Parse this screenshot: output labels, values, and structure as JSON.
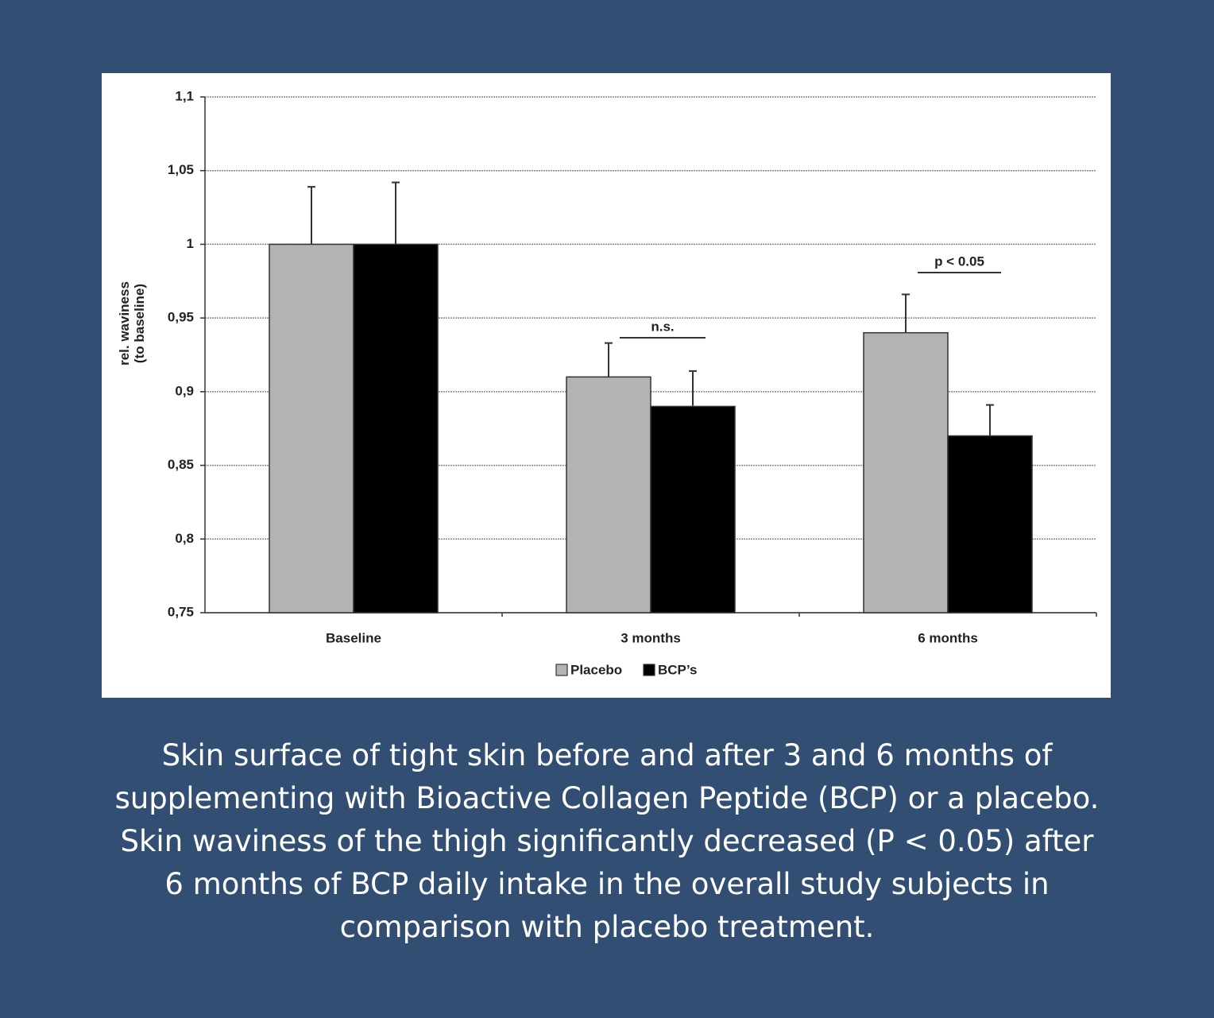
{
  "chart_data": {
    "type": "bar",
    "ylabel": [
      "rel. waviness",
      "(to baseline)"
    ],
    "categories": [
      "Baseline",
      "3 months",
      "6 months"
    ],
    "series": [
      {
        "name": "Placebo",
        "color": "#b3b3b3",
        "values": [
          1,
          0.91,
          0.94
        ],
        "errors": [
          0.039,
          0.023,
          0.026
        ]
      },
      {
        "name": "BCP’s",
        "color": "#000000",
        "values": [
          1,
          0.89,
          0.87
        ],
        "errors": [
          0.042,
          0.024,
          0.021
        ]
      }
    ],
    "ylim": [
      0.75,
      1.1
    ],
    "yticks": [
      {
        "value": 0.75,
        "label": "0,75"
      },
      {
        "value": 0.8,
        "label": "0,8"
      },
      {
        "value": 0.85,
        "label": "0,85"
      },
      {
        "value": 0.9,
        "label": "0,9"
      },
      {
        "value": 0.95,
        "label": "0,95"
      },
      1,
      {
        "value": 1.05,
        "label": "1,05"
      },
      {
        "value": 1.1,
        "label": "1,1"
      }
    ],
    "grid": true,
    "legend": "bottom",
    "annotations": [
      "n.s.",
      "p < 0.05"
    ]
  },
  "caption": "Skin surface of tight skin before and after 3 and 6 months of supplementing with Bioactive Collagen Peptide (BCP) or a placebo. Skin waviness of the thigh significantly decreased (P < 0.05) after 6 months of BCP daily intake in the overall study subjects in comparison with placebo treatment."
}
